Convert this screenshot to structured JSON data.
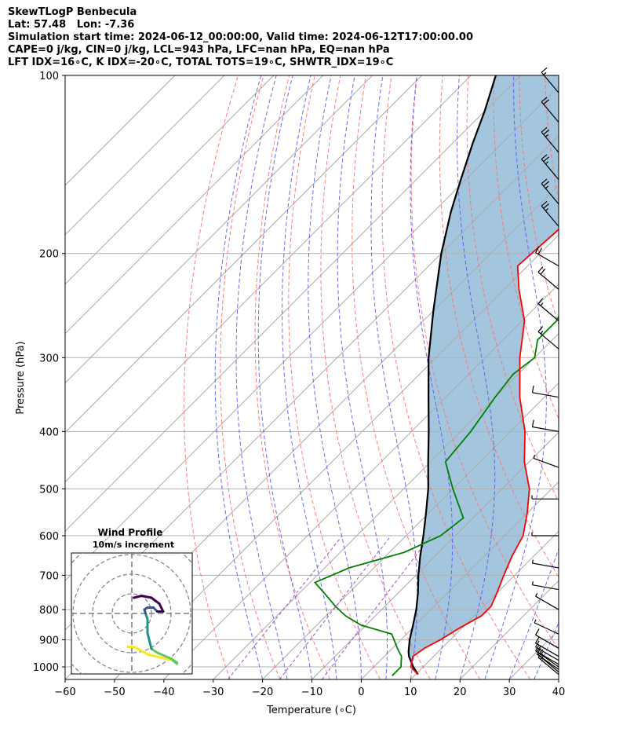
{
  "header": {
    "title": "SkewTLogP Benbecula",
    "location": "Lat: 57.48   Lon: -7.36",
    "times": "Simulation start time: 2024-06-12_00:00:00, Valid time: 2024-06-12T17:00:00.00",
    "params1": "CAPE=0 j/kg, CIN=0 j/kg, LCL=943 hPa, LFC=nan hPa, EQ=nan hPa",
    "params2": "LFT IDX=16∘C, K IDX=-20∘C, TOTAL TOTS=19∘C, SHWTR_IDX=19∘C"
  },
  "chart_data": {
    "type": "skew-t log-p",
    "xlabel": "Temperature (∘C)",
    "ylabel": "Pressure (hPa)",
    "xlim": [
      -60,
      40
    ],
    "ylim": [
      1050,
      100
    ],
    "yscale": "log",
    "x_ticks": [
      "−60",
      "−50",
      "−40",
      "−30",
      "−20",
      "−10",
      "0",
      "10",
      "20",
      "30",
      "40"
    ],
    "y_ticks": [
      "100",
      "200",
      "300",
      "400",
      "500",
      "600",
      "700",
      "800",
      "900",
      "1000"
    ],
    "grid": true,
    "colors": {
      "temperature": "#ff0000",
      "dewpoint": "#008000",
      "parcel": "#000000",
      "cape_fill": "#a3c6de",
      "isotherm": "#aaaaaa",
      "dry_adiabat": "#ff6f6f",
      "moist_adiabat": "#5a5af0",
      "mixing_ratio": "#a050c0"
    },
    "temperature": {
      "p": [
        1030,
        1000,
        960,
        930,
        900,
        860,
        820,
        790,
        750,
        700,
        650,
        600,
        550,
        500,
        450,
        400,
        350,
        300,
        260,
        230,
        210,
        180,
        150,
        130,
        115,
        100
      ],
      "t": [
        10.5,
        7.5,
        5.8,
        6.5,
        8,
        9.5,
        11.5,
        11.5,
        10,
        7.8,
        5.6,
        3.7,
        0,
        -4.5,
        -11,
        -17,
        -25,
        -33,
        -39.5,
        -47,
        -52,
        -51,
        -51,
        -53,
        -55,
        -58
      ]
    },
    "dewpoint": {
      "p": [
        1035,
        1000,
        960,
        930,
        880,
        850,
        820,
        790,
        750,
        720,
        680,
        640,
        600,
        560,
        500,
        450,
        400,
        350,
        320,
        300,
        280,
        260,
        230,
        210,
        200,
        180,
        160,
        145,
        135,
        125,
        115,
        100
      ],
      "t": [
        5.5,
        5.5,
        3.5,
        1,
        -3,
        -11,
        -16,
        -20,
        -25,
        -29,
        -25,
        -17,
        -13,
        -12,
        -20,
        -27,
        -28,
        -30,
        -31,
        -30,
        -33,
        -33,
        -36,
        -37,
        -37,
        -38,
        -41,
        -45,
        -45,
        -43,
        -41,
        -33
      ]
    },
    "parcel": {
      "p": [
        1030,
        1000,
        960,
        943,
        900,
        850,
        800,
        750,
        700,
        650,
        600,
        550,
        500,
        450,
        400,
        350,
        300,
        250,
        200,
        170,
        150,
        130,
        115,
        100
      ],
      "t": [
        10.5,
        8,
        5,
        4,
        1.8,
        -0.5,
        -3,
        -6,
        -9.5,
        -13,
        -16.5,
        -20.5,
        -25,
        -30.5,
        -36.5,
        -43.5,
        -51.5,
        -60,
        -70,
        -76.5,
        -81,
        -86,
        -90,
        -95
      ]
    },
    "wind_barbs": {
      "p": [
        1030,
        1020,
        1010,
        1000,
        990,
        975,
        960,
        930,
        880,
        800,
        740,
        680,
        600,
        520,
        460,
        400,
        350,
        290,
        260,
        230,
        210,
        180,
        165,
        150,
        135,
        120,
        107
      ],
      "dir": [
        310,
        310,
        305,
        305,
        300,
        300,
        300,
        300,
        295,
        300,
        280,
        280,
        270,
        270,
        290,
        280,
        280,
        310,
        310,
        310,
        300,
        320,
        320,
        320,
        320,
        320,
        320
      ],
      "spd_kt": [
        15,
        15,
        15,
        12,
        12,
        12,
        10,
        10,
        8,
        8,
        8,
        8,
        6,
        6,
        8,
        12,
        14,
        15,
        18,
        20,
        22,
        25,
        25,
        25,
        25,
        20,
        18
      ]
    },
    "hodograph": {
      "title": "Wind Profile",
      "subtitle": "10m/s increment",
      "u": [
        -1,
        0.5,
        2.5,
        4.2,
        6.5,
        8.5,
        10.5,
        11.5,
        11.5,
        10,
        6.5,
        5,
        4.5,
        4,
        4,
        4,
        3.5,
        3.2,
        4,
        5.5,
        6.5,
        8,
        7,
        5,
        2.5,
        0.5
      ],
      "v": [
        -8.5,
        -8.5,
        -9.5,
        -10.5,
        -11,
        -11.5,
        -12,
        -12.8,
        -12.5,
        -11.5,
        -10,
        -9,
        -7,
        -5,
        -3,
        -1.5,
        0,
        1,
        1.5,
        1.5,
        0.5,
        0.5,
        2.5,
        4,
        4.5,
        4
      ]
    }
  }
}
